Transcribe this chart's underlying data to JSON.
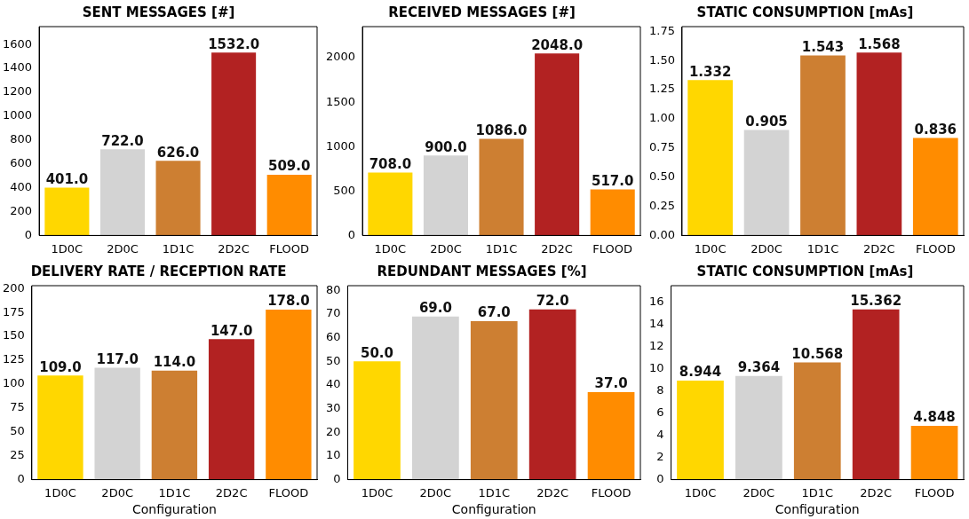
{
  "chart_data": [
    {
      "type": "bar",
      "title": "SENT MESSAGES [#]",
      "categories": [
        "1D0C",
        "2D0C",
        "1D1C",
        "2D2C",
        "FLOOD"
      ],
      "values": [
        401,
        722,
        626,
        1532,
        509
      ],
      "value_labels": [
        "401.0",
        "722.0",
        "626.0",
        "1532.0",
        "509.0"
      ],
      "colors": [
        "#ffd700",
        "#d3d3d3",
        "#cd7f32",
        "#b22222",
        "#ff8c00"
      ],
      "ylim": [
        0,
        1750
      ],
      "yticks": [
        0,
        200,
        400,
        600,
        800,
        1000,
        1200,
        1400,
        1600
      ]
    },
    {
      "type": "bar",
      "title": "RECEIVED MESSAGES [#]",
      "categories": [
        "1D0C",
        "2D0C",
        "1D1C",
        "2D2C",
        "FLOOD"
      ],
      "values": [
        708,
        900,
        1086,
        2048,
        517
      ],
      "value_labels": [
        "708.0",
        "900.0",
        "1086.0",
        "2048.0",
        "517.0"
      ],
      "colors": [
        "#ffd700",
        "#d3d3d3",
        "#cd7f32",
        "#b22222",
        "#ff8c00"
      ],
      "ylim": [
        0,
        2350
      ],
      "yticks": [
        0,
        500,
        1000,
        1500,
        2000
      ]
    },
    {
      "type": "bar",
      "title": "STATIC CONSUMPTION [mAs]",
      "categories": [
        "1D0C",
        "2D0C",
        "1D1C",
        "2D2C",
        "FLOOD"
      ],
      "values": [
        1.332,
        0.905,
        1.543,
        1.568,
        0.836
      ],
      "value_labels": [
        "1.332",
        "0.905",
        "1.543",
        "1.568",
        "0.836"
      ],
      "colors": [
        "#ffd700",
        "#d3d3d3",
        "#cd7f32",
        "#b22222",
        "#ff8c00"
      ],
      "ylim": [
        0,
        1.79
      ],
      "yticks": [
        {
          "value": 0,
          "label": "0.00"
        },
        {
          "value": 0.25,
          "label": "0.25"
        },
        {
          "value": 0.5,
          "label": "0.50"
        },
        {
          "value": 0.75,
          "label": "0.75"
        },
        {
          "value": 1,
          "label": "1.00"
        },
        {
          "value": 1.25,
          "label": "1.25"
        },
        {
          "value": 1.5,
          "label": "1.50"
        },
        {
          "value": 1.75,
          "label": "1.75"
        }
      ]
    },
    {
      "type": "bar",
      "title": "DELIVERY RATE / RECEPTION RATE",
      "xlabel": "Configuration",
      "categories": [
        "1D0C",
        "2D0C",
        "1D1C",
        "2D2C",
        "FLOOD"
      ],
      "values": [
        109,
        117,
        114,
        147,
        178
      ],
      "value_labels": [
        "109.0",
        "117.0",
        "114.0",
        "147.0",
        "178.0"
      ],
      "colors": [
        "#ffd700",
        "#d3d3d3",
        "#cd7f32",
        "#b22222",
        "#ff8c00"
      ],
      "ylim": [
        0,
        203
      ],
      "yticks": [
        0,
        25,
        50,
        75,
        100,
        125,
        150,
        175,
        200
      ]
    },
    {
      "type": "bar",
      "title": "REDUNDANT MESSAGES [%]",
      "xlabel": "Configuration",
      "categories": [
        "1D0C",
        "2D0C",
        "1D1C",
        "2D2C",
        "FLOOD"
      ],
      "values": [
        50,
        69,
        67,
        72,
        37
      ],
      "value_labels": [
        "50.0",
        "69.0",
        "67.0",
        "72.0",
        "37.0"
      ],
      "colors": [
        "#ffd700",
        "#d3d3d3",
        "#cd7f32",
        "#b22222",
        "#ff8c00"
      ],
      "ylim": [
        0,
        82
      ],
      "yticks": [
        0,
        10,
        20,
        30,
        40,
        50,
        60,
        70,
        80
      ]
    },
    {
      "type": "bar",
      "title": "STATIC CONSUMPTION [mAs]",
      "xlabel": "Configuration",
      "categories": [
        "1D0C",
        "2D0C",
        "1D1C",
        "2D2C",
        "FLOOD"
      ],
      "values": [
        8.944,
        9.364,
        10.568,
        15.362,
        4.848
      ],
      "value_labels": [
        "8.944",
        "9.364",
        "10.568",
        "15.362",
        "4.848"
      ],
      "colors": [
        "#ffd700",
        "#d3d3d3",
        "#cd7f32",
        "#b22222",
        "#ff8c00"
      ],
      "ylim": [
        0,
        17.5
      ],
      "yticks": [
        0,
        2,
        4,
        6,
        8,
        10,
        12,
        14,
        16
      ]
    }
  ]
}
